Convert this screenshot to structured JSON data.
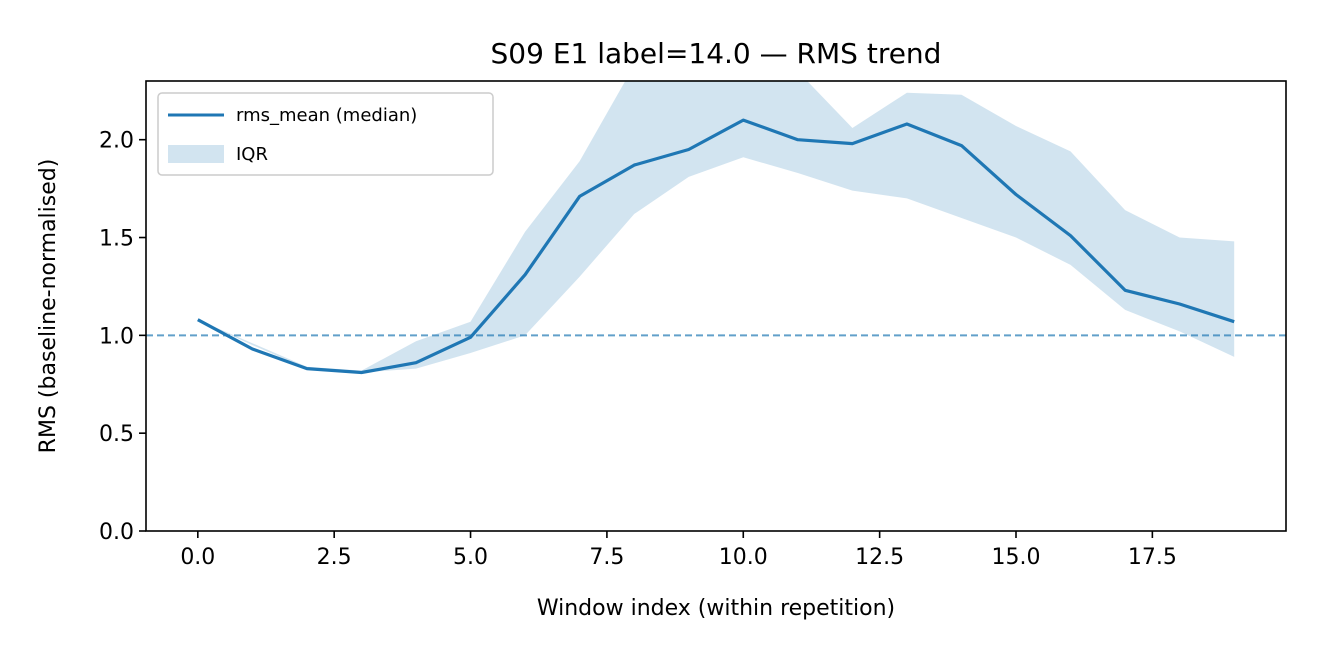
{
  "chart_data": {
    "type": "line",
    "title": "S09 E1 label=14.0 — RMS trend",
    "xlabel": "Window index (within repetition)",
    "ylabel": "RMS (baseline-normalised)",
    "xlim": [
      -0.95,
      19.95
    ],
    "ylim": [
      0,
      2.3
    ],
    "xticks": [
      0,
      2.5,
      5,
      7.5,
      10,
      12.5,
      15,
      17.5
    ],
    "xtick_labels": [
      "0.0",
      "2.5",
      "5.0",
      "7.5",
      "10.0",
      "12.5",
      "15.0",
      "17.5"
    ],
    "yticks": [
      0,
      0.5,
      1,
      1.5,
      2
    ],
    "ytick_labels": [
      "0.0",
      "0.5",
      "1.0",
      "1.5",
      "2.0"
    ],
    "grid": false,
    "legend_position": "top-left",
    "x": [
      0,
      1,
      2,
      3,
      4,
      5,
      6,
      7,
      8,
      9,
      10,
      11,
      12,
      13,
      14,
      15,
      16,
      17,
      18,
      19
    ],
    "series": [
      {
        "name": "rms_mean (median)",
        "kind": "line",
        "color": "#1f77b4",
        "values": [
          1.08,
          0.93,
          0.83,
          0.81,
          0.86,
          0.99,
          1.31,
          1.71,
          1.87,
          1.95,
          2.1,
          2.0,
          1.98,
          2.08,
          1.97,
          1.72,
          1.51,
          1.23,
          1.16,
          1.07
        ]
      },
      {
        "name": "IQR",
        "kind": "band",
        "color": "#1f77b4",
        "lower": [
          1.08,
          0.95,
          0.83,
          0.81,
          0.83,
          0.91,
          1.0,
          1.3,
          1.62,
          1.81,
          1.91,
          1.83,
          1.74,
          1.7,
          1.6,
          1.5,
          1.36,
          1.13,
          1.02,
          0.89
        ],
        "upper": [
          1.08,
          0.96,
          0.84,
          0.82,
          0.97,
          1.07,
          1.53,
          1.89,
          2.38,
          2.45,
          2.45,
          2.35,
          2.06,
          2.24,
          2.23,
          2.07,
          1.94,
          1.64,
          1.5,
          1.48
        ]
      }
    ],
    "reference_line": {
      "y": 1.0,
      "style": "dashed",
      "color": "#1f77b4"
    }
  }
}
